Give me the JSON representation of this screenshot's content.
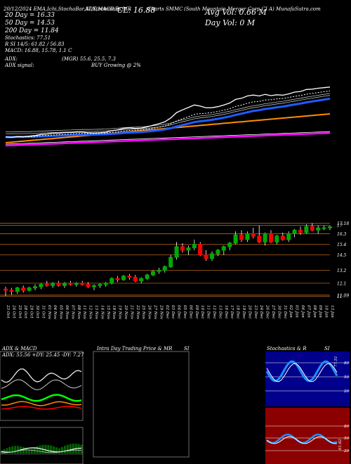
{
  "header": {
    "line1": "20/12/2024 EMA,Ichi,StochaBar,ADX,MACD,R",
    "line1b": "SI,Stochastics,MR",
    "cl": "CL: 16.88",
    "ticker": "Charts SMMC",
    "company": "(South Mountain Merger Corp CI A) MunafaSutra.com",
    "avg_vol": "Avg Vol: 0.66 M",
    "day_vol": "Day Vol: 0 M"
  },
  "indicators": {
    "dma20": "20 Day = 16.33",
    "dma50": "50 Day = 14.53",
    "dma200": "200 Day = 11.84",
    "stoch": "Stochastics: 77.51",
    "rsi": "R SI 14/5: 61.82 / 56.83",
    "macd": "MACD: 16.88, 15.78, 1.1 C",
    "adx": "ADX:",
    "adx_vals": "(MGR) 55.6, 25.5, 7.3",
    "adx_signal": "ADX signal:",
    "buy": "BUY Growing @ 2%"
  },
  "price_labels": [
    "17.18",
    "17",
    "16.3",
    "15.4",
    "14.5",
    "13.2",
    "12.1",
    "11",
    "11.09"
  ],
  "dates": [
    "23 Oct",
    "24 Oct",
    "25 Oct",
    "28 Oct",
    "29 Oct",
    "30 Oct",
    "31 Oct",
    "01 Nov",
    "04 Nov",
    "05 Nov",
    "06 Nov",
    "07 Nov",
    "08 Nov",
    "11 Nov",
    "12 Nov",
    "13 Nov",
    "14 Nov",
    "15 Nov",
    "18 Nov",
    "19 Nov",
    "20 Nov",
    "21 Nov",
    "22 Nov",
    "25 Nov",
    "26 Nov",
    "27 Nov",
    "29 Nov",
    "02 Dec",
    "03 Dec",
    "04 Dec",
    "05 Dec",
    "06 Dec",
    "09 Dec",
    "10 Dec",
    "11 Dec",
    "12 Dec",
    "13 Dec",
    "16 Dec",
    "17 Dec",
    "18 Dec",
    "19 Dec",
    "20 Dec",
    "23 Dec",
    "24 Dec",
    "26 Dec",
    "27 Dec",
    "30 Dec",
    "31 Dec",
    "02 Jan",
    "03 Jan",
    "06 Jan",
    "07 Jan",
    "08 Jan",
    "09 Jan",
    "10 Jan",
    "13 Jan"
  ],
  "panels": {
    "adx_title": "ADX & MACD",
    "adx_text": "ADX: 55.56 +DY: 25.45 -DY: 7.27",
    "intra_title": "Intra Day Trading Price & MR",
    "intra_si": "SI",
    "stoch_title": "Stochastics & R",
    "stoch_si": "SI",
    "stoch_scale": [
      "80",
      "50",
      "20"
    ],
    "rsi_scale": [
      "80",
      "50",
      "20"
    ],
    "stoch_val": "77.51",
    "rsi_val": "61.82"
  },
  "chart_data": {
    "type": "candlestick",
    "title": "Charts SMMC",
    "ylim": [
      10.6,
      17.4
    ],
    "candles": [
      [
        11.6,
        11.8,
        11.0,
        11.5
      ],
      [
        11.5,
        11.7,
        11.1,
        11.4
      ],
      [
        11.4,
        11.8,
        11.2,
        11.7
      ],
      [
        11.7,
        11.9,
        11.3,
        11.5
      ],
      [
        11.5,
        11.8,
        11.4,
        11.7
      ],
      [
        11.7,
        12.0,
        11.5,
        11.8
      ],
      [
        11.8,
        12.1,
        11.6,
        12.0
      ],
      [
        12.0,
        12.3,
        11.8,
        11.9
      ],
      [
        11.9,
        12.2,
        11.7,
        12.1
      ],
      [
        12.1,
        12.3,
        11.8,
        11.9
      ],
      [
        11.9,
        12.2,
        11.7,
        12.1
      ],
      [
        12.1,
        12.3,
        11.9,
        12.0
      ],
      [
        12.0,
        12.2,
        11.8,
        12.1
      ],
      [
        12.1,
        12.3,
        11.9,
        12.0
      ],
      [
        12.0,
        12.2,
        11.7,
        11.8
      ],
      [
        11.8,
        12.0,
        11.5,
        11.9
      ],
      [
        11.9,
        12.1,
        11.7,
        12.0
      ],
      [
        12.0,
        12.2,
        11.8,
        12.1
      ],
      [
        12.1,
        12.6,
        12.0,
        12.5
      ],
      [
        12.5,
        12.7,
        12.2,
        12.4
      ],
      [
        12.4,
        12.8,
        12.3,
        12.7
      ],
      [
        12.7,
        12.9,
        12.4,
        12.6
      ],
      [
        12.6,
        12.8,
        12.2,
        12.3
      ],
      [
        12.3,
        12.6,
        12.1,
        12.5
      ],
      [
        12.5,
        12.9,
        12.4,
        12.8
      ],
      [
        12.8,
        13.2,
        12.7,
        13.1
      ],
      [
        13.1,
        13.4,
        12.9,
        13.2
      ],
      [
        13.2,
        13.6,
        13.0,
        13.5
      ],
      [
        13.5,
        14.5,
        13.4,
        14.3
      ],
      [
        14.3,
        15.6,
        14.1,
        15.2
      ],
      [
        15.2,
        15.5,
        14.7,
        14.9
      ],
      [
        14.9,
        15.3,
        14.5,
        15.1
      ],
      [
        15.1,
        15.8,
        14.9,
        15.4
      ],
      [
        15.4,
        15.6,
        14.4,
        14.5
      ],
      [
        14.5,
        14.9,
        14.0,
        14.2
      ],
      [
        14.2,
        14.8,
        14.0,
        14.6
      ],
      [
        14.6,
        15.0,
        14.4,
        14.9
      ],
      [
        14.9,
        15.3,
        14.5,
        15.2
      ],
      [
        15.2,
        15.6,
        14.9,
        15.5
      ],
      [
        15.5,
        16.5,
        15.4,
        16.2
      ],
      [
        16.2,
        16.6,
        15.6,
        15.8
      ],
      [
        15.8,
        16.5,
        15.6,
        16.3
      ],
      [
        16.3,
        16.8,
        15.9,
        16.1
      ],
      [
        16.1,
        17.0,
        15.5,
        15.6
      ],
      [
        15.6,
        16.4,
        15.3,
        16.3
      ],
      [
        16.3,
        16.6,
        15.5,
        15.6
      ],
      [
        15.6,
        16.2,
        15.4,
        16.1
      ],
      [
        16.1,
        16.4,
        15.7,
        15.8
      ],
      [
        15.8,
        16.5,
        15.6,
        16.3
      ],
      [
        16.3,
        16.7,
        16.0,
        16.6
      ],
      [
        16.6,
        16.9,
        16.2,
        16.4
      ],
      [
        16.4,
        17.1,
        16.3,
        16.9
      ],
      [
        16.9,
        17.2,
        16.5,
        16.6
      ],
      [
        16.6,
        17.0,
        16.3,
        16.8
      ],
      [
        16.8,
        17.0,
        16.6,
        16.8
      ],
      [
        16.8,
        17.0,
        16.6,
        16.88
      ]
    ]
  },
  "colors": {
    "up": "#00aa00",
    "down": "#ff0000",
    "ema_blue": "#1e5cff",
    "ema_orange": "#ff8c00",
    "ema_magenta": "#ff00ff",
    "grid_orange": "#b5651d",
    "stoch_bg": "#00008b",
    "rsi_bg": "#8b0000"
  }
}
